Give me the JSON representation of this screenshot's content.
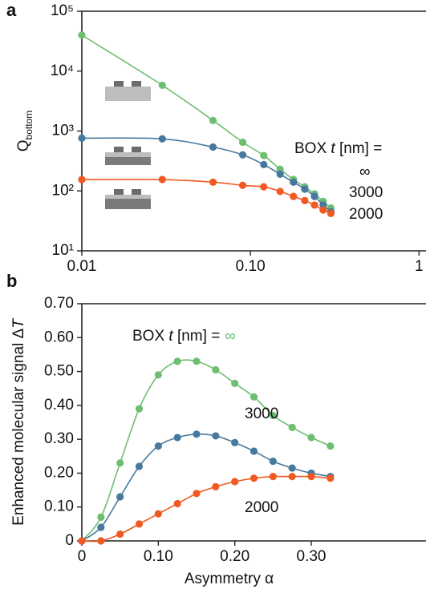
{
  "chart_data": [
    {
      "type": "line",
      "panel": "a",
      "xlog": true,
      "ylog": true,
      "y_label": "Q",
      "y_label_sub": "bottom",
      "legend_title": [
        "BOX ",
        "t",
        " [nm] ="
      ],
      "x": [
        0.01,
        0.03,
        0.06,
        0.09,
        0.12,
        0.15,
        0.18,
        0.21,
        0.24,
        0.27,
        0.3
      ],
      "series": [
        {
          "name": "∞",
          "color": "#6dbe71",
          "values": [
            40000,
            5800,
            1500,
            650,
            390,
            230,
            155,
            117,
            89,
            67,
            52
          ]
        },
        {
          "name": "3000",
          "color": "#47799f",
          "values": [
            760,
            740,
            540,
            400,
            275,
            190,
            140,
            107,
            81,
            58,
            45
          ]
        },
        {
          "name": "2000",
          "color": "#f05a22",
          "values": [
            155,
            155,
            140,
            124,
            117,
            98,
            81,
            69,
            58,
            48,
            42
          ]
        }
      ],
      "xlim": [
        0.01,
        1.1
      ],
      "xticks": [
        0.01,
        {
          "value": 0.1,
          "label": "0.10"
        },
        1
      ],
      "ylim": [
        10,
        100000
      ],
      "yticks": [
        {
          "value": 10,
          "label": "10¹"
        },
        {
          "value": 100,
          "label": "10²"
        },
        {
          "value": 1000,
          "label": "10³"
        },
        {
          "value": 10000,
          "label": "10⁴"
        },
        {
          "value": 100000,
          "label": "10⁵"
        }
      ]
    },
    {
      "type": "line",
      "panel": "b",
      "xlog": false,
      "ylog": false,
      "x_label": "Asymmetry α",
      "y_label": "Enhanced molecular signal Δ",
      "y_label_sub": "T",
      "legend_title": [
        "BOX ",
        "t",
        " [nm] ="
      ],
      "x": [
        0,
        0.025,
        0.05,
        0.075,
        0.1,
        0.125,
        0.15,
        0.175,
        0.2,
        0.225,
        0.25,
        0.275,
        0.3,
        0.325
      ],
      "series": [
        {
          "name": "∞",
          "color": "#6dbe71",
          "values": [
            0,
            0.07,
            0.23,
            0.39,
            0.49,
            0.53,
            0.53,
            0.505,
            0.465,
            0.425,
            0.37,
            0.335,
            0.305,
            0.28
          ]
        },
        {
          "name": "3000",
          "color": "#47799f",
          "values": [
            0,
            0.04,
            0.13,
            0.22,
            0.28,
            0.305,
            0.315,
            0.31,
            0.29,
            0.265,
            0.235,
            0.215,
            0.2,
            0.19
          ]
        },
        {
          "name": "2000",
          "color": "#f05a22",
          "values": [
            0,
            0,
            0.02,
            0.05,
            0.08,
            0.11,
            0.14,
            0.16,
            0.175,
            0.185,
            0.19,
            0.19,
            0.19,
            0.185
          ]
        }
      ],
      "xlim": [
        0,
        0.45
      ],
      "xticks": [
        0,
        {
          "value": 0.1,
          "label": "0.10"
        },
        {
          "value": 0.2,
          "label": "0.20"
        },
        {
          "value": 0.3,
          "label": "0.30"
        }
      ],
      "ylim": [
        0,
        0.7
      ],
      "yticks": [
        0,
        {
          "value": 0.1,
          "label": "0.10"
        },
        {
          "value": 0.2,
          "label": "0.20"
        },
        {
          "value": 0.3,
          "label": "0.30"
        },
        {
          "value": 0.4,
          "label": "0.40"
        },
        {
          "value": 0.5,
          "label": "0.50"
        },
        {
          "value": 0.6,
          "label": "0.60"
        },
        {
          "value": 0.7,
          "label": "0.70"
        }
      ]
    }
  ]
}
